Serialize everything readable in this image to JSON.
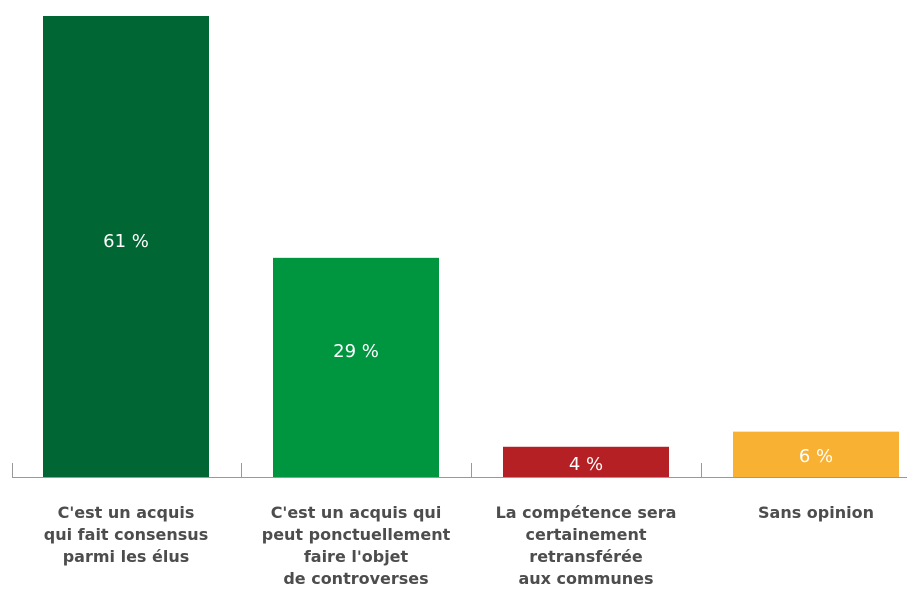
{
  "chart_data": {
    "type": "bar",
    "categories": [
      "C'est un acquis\nqui fait consensus\nparmi les élus",
      "C'est un acquis qui\npeut ponctuellement\nfaire l'objet\nde controverses",
      "La compétence sera\ncertainement\nretransférée\naux communes",
      "Sans opinion"
    ],
    "values": [
      61,
      29,
      4,
      6
    ],
    "value_labels": [
      "61 %",
      "29 %",
      "4 %",
      "6 %"
    ],
    "colors": [
      "#006633",
      "#009640",
      "#b52025",
      "#f8b133"
    ],
    "value_label_color": "#ffffff",
    "axis_color": "#999999",
    "ylim": [
      0,
      70
    ],
    "grid": false,
    "title": "",
    "xlabel": "",
    "ylabel": ""
  }
}
